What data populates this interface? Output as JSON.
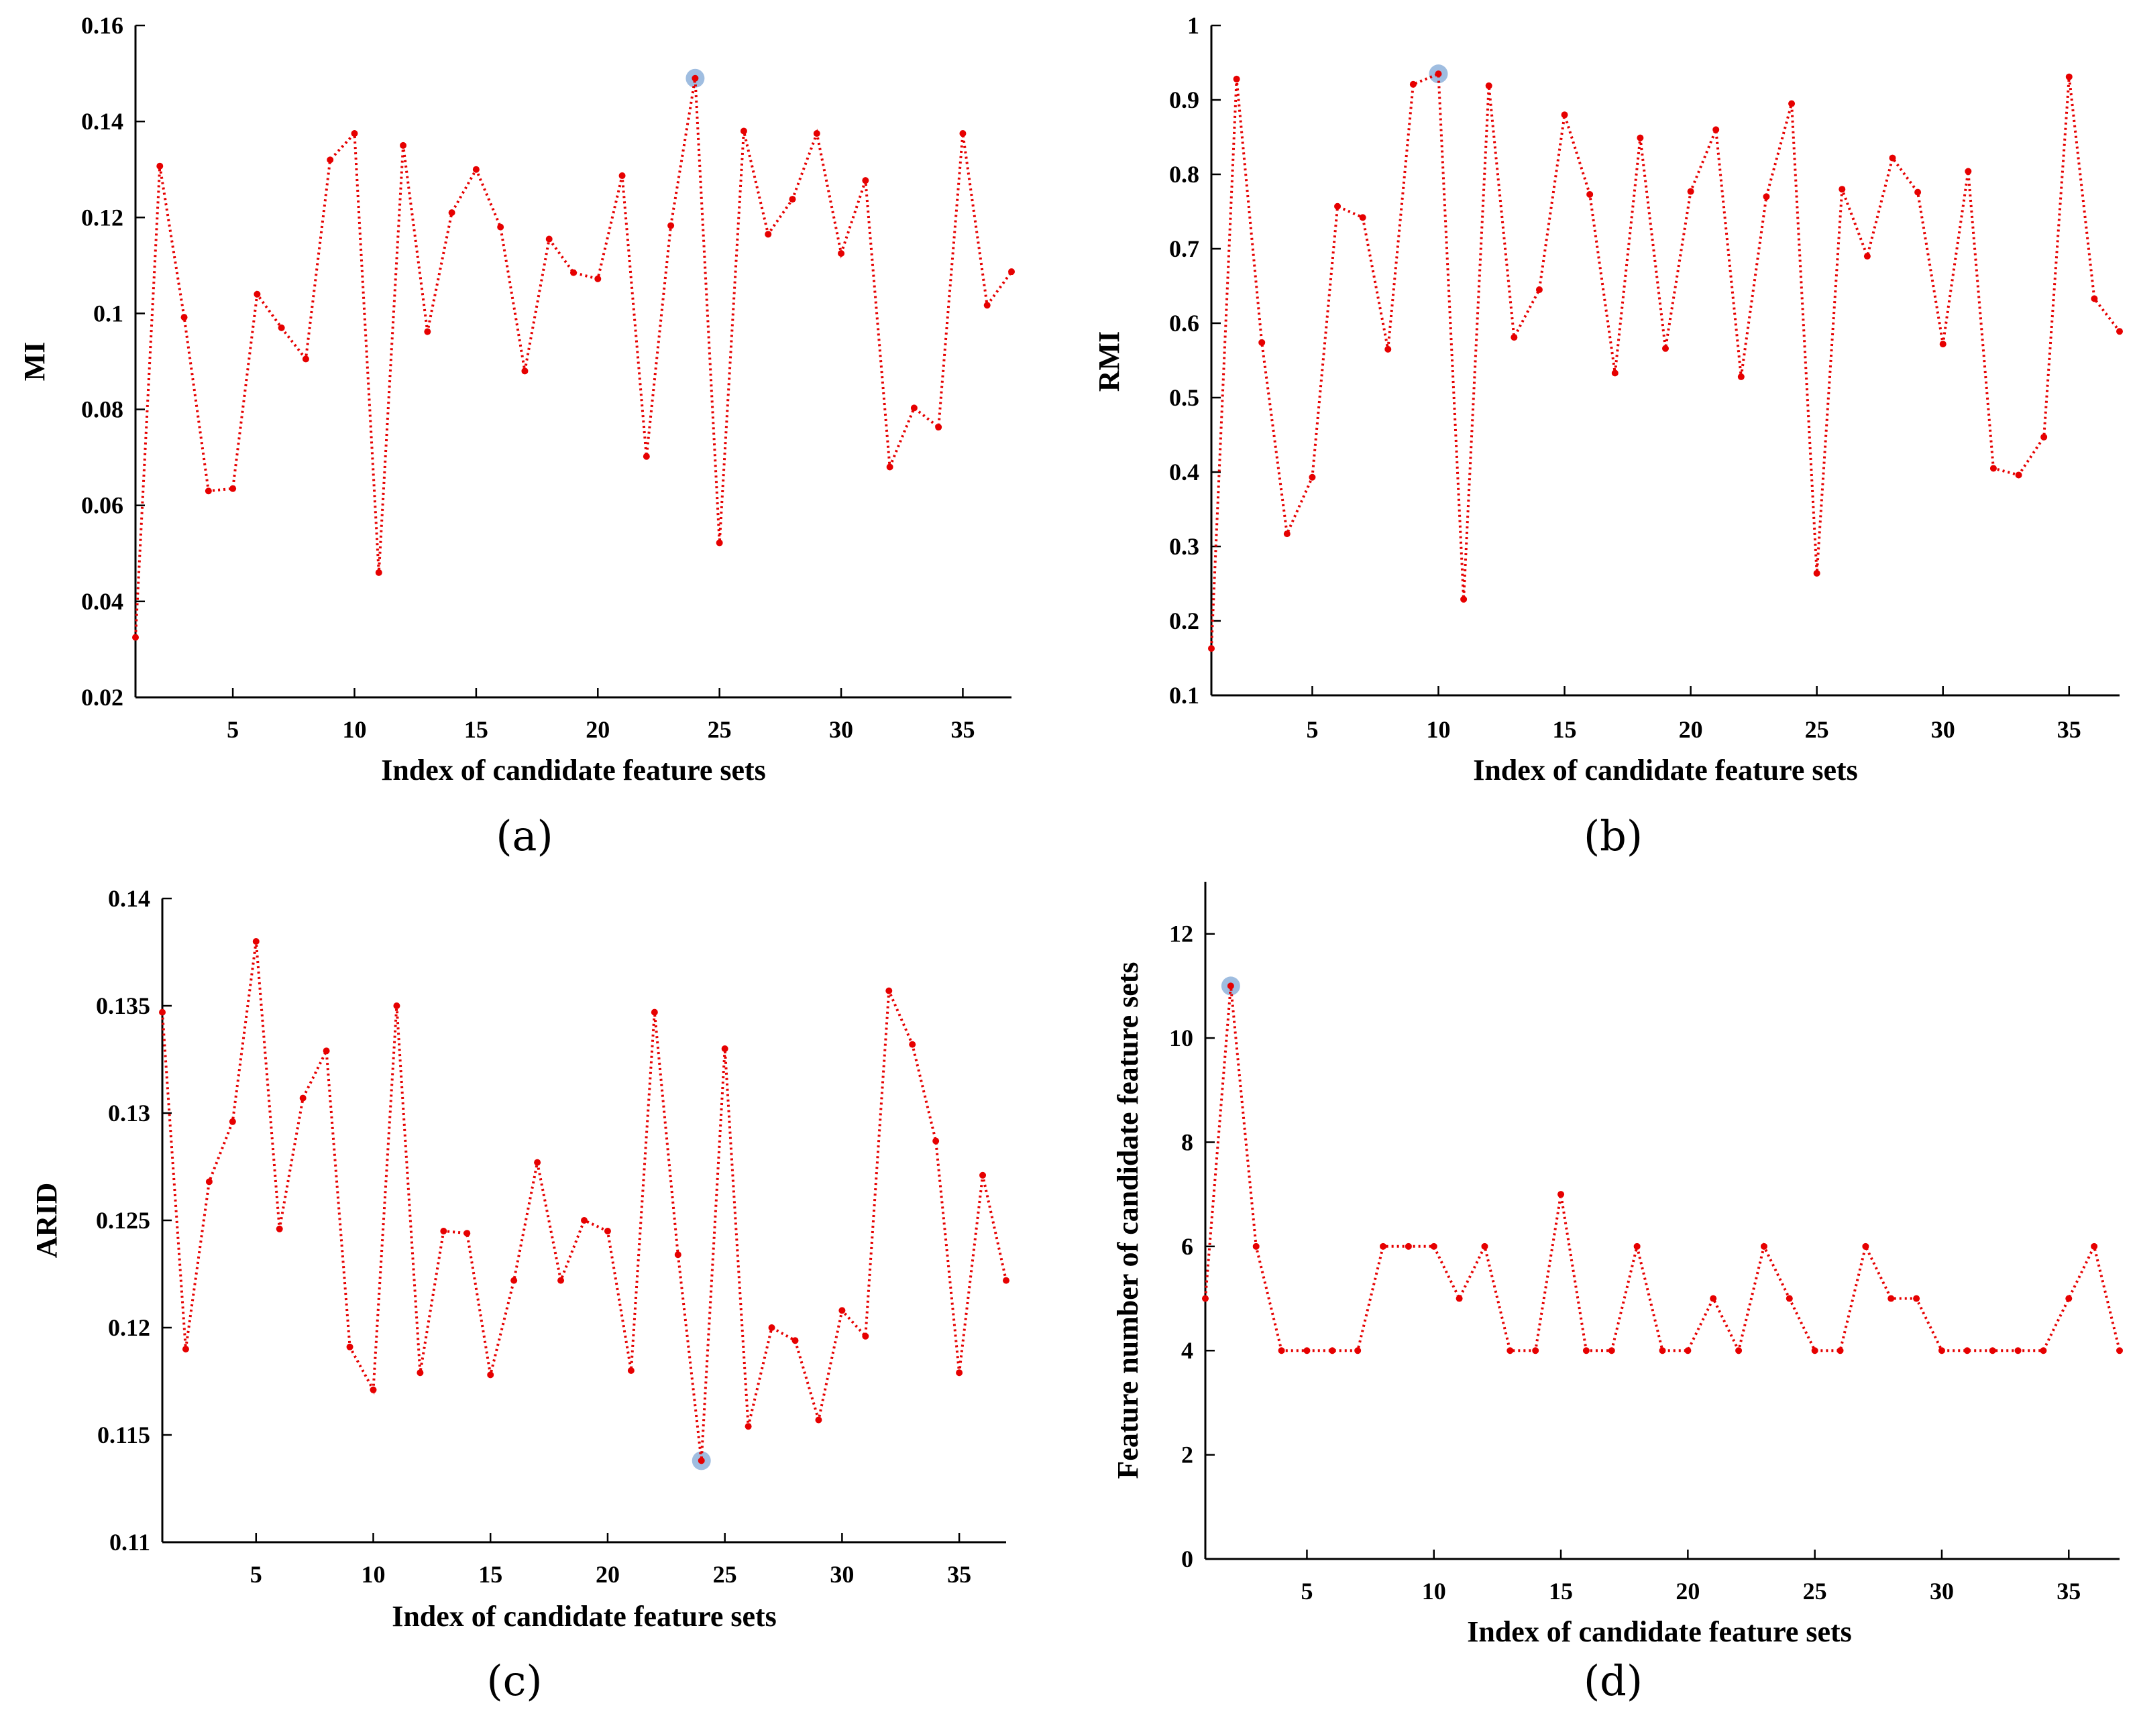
{
  "chart_data": [
    {
      "type": "line",
      "panel_label": "(a)",
      "title": "",
      "xlabel": "Index of candidate feature sets",
      "ylabel": "MI",
      "xlim": [
        1,
        37
      ],
      "ylim": [
        0.02,
        0.16
      ],
      "xticks": [
        5,
        10,
        15,
        20,
        25,
        30,
        35
      ],
      "yticks": [
        0.02,
        0.04,
        0.06,
        0.08,
        0.1,
        0.12,
        0.14,
        0.16
      ],
      "ytick_labels": [
        "0.02",
        "0.04",
        "0.06",
        "0.08",
        "0.1",
        "0.12",
        "0.14",
        "0.16"
      ],
      "highlight_index": 24,
      "x": [
        1,
        2,
        3,
        4,
        5,
        6,
        7,
        8,
        9,
        10,
        11,
        12,
        13,
        14,
        15,
        16,
        17,
        18,
        19,
        20,
        21,
        22,
        23,
        24,
        25,
        26,
        27,
        28,
        29,
        30,
        31,
        32,
        33,
        34,
        35,
        36,
        37
      ],
      "values": [
        0.0325,
        0.1307,
        0.0992,
        0.063,
        0.0635,
        0.104,
        0.097,
        0.0905,
        0.132,
        0.1375,
        0.046,
        0.135,
        0.0962,
        0.121,
        0.13,
        0.118,
        0.088,
        0.1155,
        0.1085,
        0.1072,
        0.1287,
        0.0702,
        0.1183,
        0.149,
        0.0522,
        0.138,
        0.1165,
        0.1238,
        0.1375,
        0.1125,
        0.1277,
        0.068,
        0.0803,
        0.0763,
        0.1375,
        0.1017,
        0.1087
      ]
    },
    {
      "type": "line",
      "panel_label": "(b)",
      "title": "",
      "xlabel": "Index of candidate feature sets",
      "ylabel": "RMI",
      "xlim": [
        1,
        37
      ],
      "ylim": [
        0.1,
        1.0
      ],
      "xticks": [
        5,
        10,
        15,
        20,
        25,
        30,
        35
      ],
      "yticks": [
        0.1,
        0.2,
        0.3,
        0.4,
        0.5,
        0.6,
        0.7,
        0.8,
        0.9,
        1.0
      ],
      "ytick_labels": [
        "0.1",
        "0.2",
        "0.3",
        "0.4",
        "0.5",
        "0.6",
        "0.7",
        "0.8",
        "0.9",
        "1"
      ],
      "highlight_index": 10,
      "x": [
        1,
        2,
        3,
        4,
        5,
        6,
        7,
        8,
        9,
        10,
        11,
        12,
        13,
        14,
        15,
        16,
        17,
        18,
        19,
        20,
        21,
        22,
        23,
        24,
        25,
        26,
        27,
        28,
        29,
        30,
        31,
        32,
        33,
        34,
        35,
        36,
        37
      ],
      "values": [
        0.163,
        0.928,
        0.574,
        0.317,
        0.393,
        0.757,
        0.742,
        0.565,
        0.921,
        0.935,
        0.229,
        0.919,
        0.581,
        0.645,
        0.88,
        0.773,
        0.533,
        0.849,
        0.566,
        0.777,
        0.86,
        0.528,
        0.77,
        0.895,
        0.264,
        0.78,
        0.69,
        0.822,
        0.776,
        0.572,
        0.804,
        0.405,
        0.396,
        0.447,
        0.931,
        0.633,
        0.589
      ]
    },
    {
      "type": "line",
      "panel_label": "(c)",
      "title": "",
      "xlabel": "Index of candidate feature sets",
      "ylabel": "ARID",
      "xlim": [
        1,
        37
      ],
      "ylim": [
        0.11,
        0.14
      ],
      "xticks": [
        5,
        10,
        15,
        20,
        25,
        30,
        35
      ],
      "yticks": [
        0.11,
        0.115,
        0.12,
        0.125,
        0.13,
        0.135,
        0.14
      ],
      "ytick_labels": [
        "0.11",
        "0.115",
        "0.12",
        "0.125",
        "0.13",
        "0.135",
        "0.14"
      ],
      "highlight_index": 24,
      "x": [
        1,
        2,
        3,
        4,
        5,
        6,
        7,
        8,
        9,
        10,
        11,
        12,
        13,
        14,
        15,
        16,
        17,
        18,
        19,
        20,
        21,
        22,
        23,
        24,
        25,
        26,
        27,
        28,
        29,
        30,
        31,
        32,
        33,
        34,
        35,
        36,
        37
      ],
      "values": [
        0.1347,
        0.119,
        0.1268,
        0.1296,
        0.138,
        0.1246,
        0.1307,
        0.1329,
        0.1191,
        0.1171,
        0.135,
        0.1179,
        0.1245,
        0.1244,
        0.1178,
        0.1222,
        0.1277,
        0.1222,
        0.125,
        0.1245,
        0.118,
        0.1347,
        0.1234,
        0.1138,
        0.133,
        0.1154,
        0.12,
        0.1194,
        0.1157,
        0.1208,
        0.1196,
        0.1357,
        0.1332,
        0.1287,
        0.1179,
        0.1271,
        0.1222
      ]
    },
    {
      "type": "line",
      "panel_label": "(d)",
      "title": "",
      "xlabel": "Index of candidate feature sets",
      "ylabel": "Feature number of candidate feature sets",
      "xlim": [
        1,
        37
      ],
      "ylim": [
        0,
        13
      ],
      "xticks": [
        5,
        10,
        15,
        20,
        25,
        30,
        35
      ],
      "yticks": [
        0,
        2,
        4,
        6,
        8,
        10,
        12
      ],
      "ytick_labels": [
        "0",
        "2",
        "4",
        "6",
        "8",
        "10",
        "12"
      ],
      "highlight_index": 2,
      "x": [
        1,
        2,
        3,
        4,
        5,
        6,
        7,
        8,
        9,
        10,
        11,
        12,
        13,
        14,
        15,
        16,
        17,
        18,
        19,
        20,
        21,
        22,
        23,
        24,
        25,
        26,
        27,
        28,
        29,
        30,
        31,
        32,
        33,
        34,
        35,
        36,
        37
      ],
      "values": [
        5,
        11,
        6,
        4,
        4,
        4,
        4,
        6,
        6,
        6,
        5,
        6,
        4,
        4,
        7,
        4,
        4,
        6,
        4,
        4,
        5,
        4,
        6,
        5,
        4,
        4,
        6,
        5,
        5,
        4,
        4,
        4,
        4,
        4,
        5,
        6,
        4
      ]
    }
  ],
  "colors": {
    "series": "#e60000",
    "highlight": "#9fbde0",
    "axis": "#000000"
  }
}
